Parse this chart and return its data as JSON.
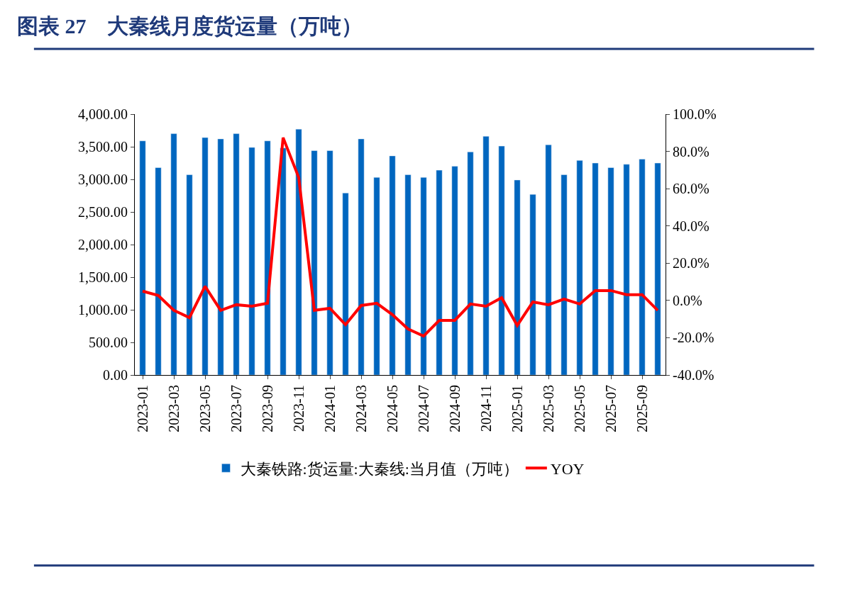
{
  "chart_data": {
    "type": "bar",
    "title": "图表 27　大秦线月度货运量（万吨）",
    "categories": [
      "2023-01",
      null,
      "2023-03",
      null,
      "2023-05",
      null,
      "2023-07",
      null,
      "2023-09",
      null,
      "2023-11",
      null,
      "2024-01",
      null,
      "2024-03",
      null,
      "2024-05",
      null,
      "2024-07",
      null,
      "2024-09",
      null,
      "2024-11",
      null,
      "2025-01",
      null,
      "2025-03",
      null,
      "2025-05",
      null,
      "2025-07",
      null,
      "2025-09",
      null
    ],
    "series": [
      {
        "name": "大秦铁路:货运量:大秦线:当月值（万吨）",
        "color": "#0066bf",
        "values": [
          3590,
          3180,
          3700,
          3070,
          3640,
          3620,
          3700,
          3490,
          3590,
          3480,
          3770,
          3440,
          3440,
          2790,
          3620,
          3030,
          3360,
          3070,
          3030,
          3140,
          3200,
          3420,
          3660,
          3510,
          2990,
          2770,
          3530,
          3070,
          3290,
          3250,
          3180,
          3230,
          3310,
          3250
        ]
      },
      {
        "name": "YOY",
        "type": "line",
        "axis": "y2",
        "color": "#ff0000",
        "values": [
          5.0,
          2.7,
          -5.3,
          -9.2,
          7.6,
          -5.3,
          -2.3,
          -3.1,
          -1.5,
          87.4,
          66.0,
          -5.3,
          -4.2,
          -13.0,
          -2.7,
          -1.5,
          -7.6,
          -15.3,
          -19.1,
          -10.7,
          -10.7,
          -1.9,
          -3.1,
          1.5,
          -13.4,
          -0.8,
          -2.3,
          0.8,
          -1.9,
          5.3,
          5.3,
          3.1,
          3.1,
          -5.3
        ]
      }
    ],
    "ylim": [
      0,
      4000
    ],
    "yticks": [
      {
        "value": 0,
        "label": "0.00"
      },
      {
        "value": 500,
        "label": "500.00"
      },
      {
        "value": 1000,
        "label": "1,000.00"
      },
      {
        "value": 1500,
        "label": "1,500.00"
      },
      {
        "value": 2000,
        "label": "2,000.00"
      },
      {
        "value": 2500,
        "label": "2,500.00"
      },
      {
        "value": 3000,
        "label": "3,000.00"
      },
      {
        "value": 3500,
        "label": "3,500.00"
      },
      {
        "value": 4000,
        "label": "4,000.00"
      }
    ],
    "y2lim": [
      -40,
      100
    ],
    "y2ticks": [
      {
        "value": -40,
        "label": "-40.0%"
      },
      {
        "value": -20,
        "label": "-20.0%"
      },
      {
        "value": 0,
        "label": "0.0%"
      },
      {
        "value": 20,
        "label": "20.0%"
      },
      {
        "value": 40,
        "label": "40.0%"
      },
      {
        "value": 60,
        "label": "60.0%"
      },
      {
        "value": 80,
        "label": "80.0%"
      },
      {
        "value": 100,
        "label": "100.0%"
      }
    ],
    "legend": "bottom",
    "marker": "none",
    "line_style": "solid"
  }
}
